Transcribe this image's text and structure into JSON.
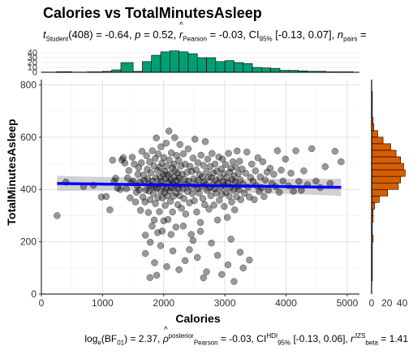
{
  "title": "Calories vs TotalMinutesAsleep",
  "subtitle": {
    "t_label": "t",
    "t_sub": "Student",
    "t_df": "(408) = -0.64, ",
    "p_label": "p",
    "p_val": " = 0.52, ",
    "r_label": "r",
    "r_sub": "Pearson",
    "r_val": " = -0.03, CI",
    "ci_sub": "95%",
    "ci_val": " [-0.13, 0.07], ",
    "n_label": "n",
    "n_sub": "pairs",
    "n_val": " ="
  },
  "caption": {
    "bf_prefix": "log",
    "bf_sub": "e",
    "bf_text": "(BF",
    "bf_sub2": "01",
    "bf_val": ") = 2.37, ",
    "rho_label": "ρ",
    "rho_sup": "posterior",
    "rho_sub": "Pearson",
    "rho_val": " = -0.03, CI",
    "ci_sup": "HDI",
    "ci_sub": "95%",
    "ci_val": " [-0.13, 0.06], ",
    "rb_label": "r",
    "rb_sup": "JZS",
    "rb_sub": "beta",
    "rb_val": " = 1.41"
  },
  "chart_data": {
    "type": "scatter",
    "xlabel": "Calories",
    "ylabel": "TotalMinutesAsleep",
    "xlim": [
      0,
      5200
    ],
    "ylim": [
      0,
      820
    ],
    "x_ticks": [
      0,
      1000,
      2000,
      3000,
      4000,
      5000
    ],
    "y_ticks": [
      0,
      200,
      400,
      600,
      800
    ],
    "grid": true,
    "point_color": "#000000",
    "point_opacity": 0.4,
    "regression": {
      "color": "#0000ff",
      "band_color": "#bebebe",
      "start": [
        257,
        423
      ],
      "end": [
        4900,
        408
      ],
      "ci_at_start": [
        395,
        452
      ],
      "ci_center": [
        407,
        430
      ],
      "ci_at_end": [
        375,
        441
      ]
    },
    "points": [
      [
        257,
        300
      ],
      [
        400,
        428
      ],
      [
        690,
        411
      ],
      [
        850,
        416
      ],
      [
        980,
        371
      ],
      [
        1060,
        373
      ],
      [
        1120,
        322
      ],
      [
        1165,
        512
      ],
      [
        1190,
        431
      ],
      [
        1215,
        443
      ],
      [
        1245,
        405
      ],
      [
        1290,
        400
      ],
      [
        1315,
        513
      ],
      [
        1340,
        521
      ],
      [
        1365,
        501
      ],
      [
        1390,
        403
      ],
      [
        1410,
        444
      ],
      [
        1430,
        472
      ],
      [
        1450,
        368
      ],
      [
        1470,
        426
      ],
      [
        1485,
        523
      ],
      [
        1500,
        431
      ],
      [
        1520,
        497
      ],
      [
        1540,
        352
      ],
      [
        1555,
        389
      ],
      [
        1565,
        414
      ],
      [
        1580,
        458
      ],
      [
        1590,
        483
      ],
      [
        1600,
        398
      ],
      [
        1615,
        428
      ],
      [
        1620,
        320
      ],
      [
        1635,
        502
      ],
      [
        1645,
        546
      ],
      [
        1660,
        371
      ],
      [
        1670,
        455
      ],
      [
        1680,
        434
      ],
      [
        1695,
        352
      ],
      [
        1700,
        225
      ],
      [
        1710,
        398
      ],
      [
        1720,
        529
      ],
      [
        1730,
        477
      ],
      [
        1740,
        441
      ],
      [
        1750,
        312
      ],
      [
        1755,
        419
      ],
      [
        1760,
        394
      ],
      [
        1770,
        505
      ],
      [
        1775,
        63
      ],
      [
        1780,
        361
      ],
      [
        1790,
        464
      ],
      [
        1800,
        414
      ],
      [
        1810,
        260
      ],
      [
        1815,
        548
      ],
      [
        1820,
        432
      ],
      [
        1830,
        384
      ],
      [
        1840,
        490
      ],
      [
        1845,
        283
      ],
      [
        1850,
        409
      ],
      [
        1860,
        518
      ],
      [
        1865,
        346
      ],
      [
        1870,
        445
      ],
      [
        1880,
        597
      ],
      [
        1885,
        72
      ],
      [
        1890,
        405
      ],
      [
        1900,
        472
      ],
      [
        1905,
        368
      ],
      [
        1910,
        536
      ],
      [
        1920,
        420
      ],
      [
        1930,
        315
      ],
      [
        1935,
        484
      ],
      [
        1940,
        447
      ],
      [
        1950,
        392
      ],
      [
        1955,
        563
      ],
      [
        1960,
        430
      ],
      [
        1970,
        501
      ],
      [
        1975,
        241
      ],
      [
        1980,
        367
      ],
      [
        1990,
        458
      ],
      [
        1995,
        413
      ],
      [
        2000,
        522
      ],
      [
        2010,
        387
      ],
      [
        2015,
        469
      ],
      [
        2025,
        339
      ],
      [
        2030,
        441
      ],
      [
        2040,
        577
      ],
      [
        2045,
        404
      ],
      [
        2050,
        489
      ],
      [
        2060,
        376
      ],
      [
        2065,
        455
      ],
      [
        2070,
        285
      ],
      [
        2080,
        427
      ],
      [
        2085,
        623
      ],
      [
        2090,
        513
      ],
      [
        2100,
        395
      ],
      [
        2105,
        461
      ],
      [
        2110,
        355
      ],
      [
        2120,
        436
      ],
      [
        2125,
        540
      ],
      [
        2130,
        407
      ],
      [
        2140,
        483
      ],
      [
        2145,
        314
      ],
      [
        2150,
        423
      ],
      [
        2160,
        374
      ],
      [
        2165,
        497
      ],
      [
        2170,
        447
      ],
      [
        2180,
        598
      ],
      [
        2185,
        414
      ],
      [
        2190,
        472
      ],
      [
        2200,
        256
      ],
      [
        2205,
        387
      ],
      [
        2210,
        530
      ],
      [
        2220,
        435
      ],
      [
        2225,
        463
      ],
      [
        2230,
        342
      ],
      [
        2240,
        403
      ],
      [
        2245,
        511
      ],
      [
        2250,
        445
      ],
      [
        2260,
        376
      ],
      [
        2265,
        572
      ],
      [
        2270,
        420
      ],
      [
        2280,
        489
      ],
      [
        2290,
        328
      ],
      [
        2300,
        458
      ],
      [
        2310,
        402
      ],
      [
        2320,
        536
      ],
      [
        2330,
        365
      ],
      [
        2340,
        439
      ],
      [
        2350,
        497
      ],
      [
        2360,
        306
      ],
      [
        2370,
        418
      ],
      [
        2380,
        465
      ],
      [
        2390,
        392
      ],
      [
        2400,
        555
      ],
      [
        2410,
        432
      ],
      [
        2420,
        349
      ],
      [
        2430,
        488
      ],
      [
        2440,
        411
      ],
      [
        2450,
        228
      ],
      [
        2460,
        469
      ],
      [
        2470,
        384
      ],
      [
        2480,
        520
      ],
      [
        2490,
        441
      ],
      [
        2500,
        357
      ],
      [
        2510,
        592
      ],
      [
        2520,
        418
      ],
      [
        2530,
        475
      ],
      [
        2540,
        314
      ],
      [
        2550,
        403
      ],
      [
        2560,
        502
      ],
      [
        2570,
        436
      ],
      [
        2580,
        386
      ],
      [
        2590,
        457
      ],
      [
        2600,
        274
      ],
      [
        2610,
        531
      ],
      [
        2620,
        412
      ],
      [
        2630,
        448
      ],
      [
        2640,
        365
      ],
      [
        2650,
        492
      ],
      [
        2660,
        428
      ],
      [
        2670,
        342
      ],
      [
        2680,
        583
      ],
      [
        2690,
        419
      ],
      [
        2700,
        468
      ],
      [
        2710,
        396
      ],
      [
        2720,
        516
      ],
      [
        2730,
        446
      ],
      [
        2740,
        325
      ],
      [
        2750,
        407
      ],
      [
        2760,
        488
      ],
      [
        2770,
        376
      ],
      [
        2780,
        445
      ],
      [
        2790,
        538
      ],
      [
        2800,
        418
      ],
      [
        2810,
        463
      ],
      [
        2820,
        340
      ],
      [
        2830,
        402
      ],
      [
        2840,
        497
      ],
      [
        2850,
        436
      ],
      [
        2860,
        386
      ],
      [
        2870,
        470
      ],
      [
        2880,
        283
      ],
      [
        2890,
        423
      ],
      [
        2900,
        524
      ],
      [
        2910,
        359
      ],
      [
        2920,
        446
      ],
      [
        2930,
        408
      ],
      [
        2940,
        478
      ],
      [
        2950,
        381
      ],
      [
        2960,
        516
      ],
      [
        2970,
        431
      ],
      [
        2980,
        461
      ],
      [
        2990,
        335
      ],
      [
        3000,
        415
      ],
      [
        3010,
        495
      ],
      [
        3020,
        388
      ],
      [
        3030,
        445
      ],
      [
        3040,
        293
      ],
      [
        3050,
        426
      ],
      [
        3060,
        538
      ],
      [
        3070,
        374
      ],
      [
        3080,
        466
      ],
      [
        3090,
        409
      ],
      [
        3100,
        481
      ],
      [
        3110,
        352
      ],
      [
        3120,
        438
      ],
      [
        3130,
        506
      ],
      [
        3140,
        396
      ],
      [
        3150,
        452
      ],
      [
        3160,
        322
      ],
      [
        3170,
        429
      ],
      [
        3180,
        485
      ],
      [
        3190,
        372
      ],
      [
        3200,
        547
      ],
      [
        3210,
        413
      ],
      [
        3220,
        461
      ],
      [
        3230,
        398
      ],
      [
        3240,
        508
      ],
      [
        3250,
        437
      ],
      [
        3260,
        361
      ],
      [
        3280,
        478
      ],
      [
        3300,
        420
      ],
      [
        3320,
        385
      ],
      [
        3340,
        462
      ],
      [
        3360,
        543
      ],
      [
        3380,
        409
      ],
      [
        3400,
        371
      ],
      [
        3420,
        446
      ],
      [
        3440,
        497
      ],
      [
        3460,
        431
      ],
      [
        3480,
        361
      ],
      [
        3500,
        471
      ],
      [
        3520,
        414
      ],
      [
        3540,
        521
      ],
      [
        3560,
        392
      ],
      [
        3580,
        448
      ],
      [
        3600,
        407
      ],
      [
        3620,
        506
      ],
      [
        3640,
        373
      ],
      [
        3660,
        436
      ],
      [
        3690,
        466
      ],
      [
        3710,
        397
      ],
      [
        3740,
        481
      ],
      [
        3770,
        423
      ],
      [
        3800,
        458
      ],
      [
        3830,
        411
      ],
      [
        3860,
        548
      ],
      [
        3890,
        389
      ],
      [
        3920,
        474
      ],
      [
        3950,
        432
      ],
      [
        3990,
        516
      ],
      [
        4040,
        414
      ],
      [
        4080,
        462
      ],
      [
        4120,
        393
      ],
      [
        4160,
        548
      ],
      [
        4210,
        431
      ],
      [
        4250,
        397
      ],
      [
        4290,
        471
      ],
      [
        4350,
        418
      ],
      [
        4420,
        556
      ],
      [
        4490,
        432
      ],
      [
        4560,
        407
      ],
      [
        4640,
        487
      ],
      [
        4720,
        423
      ],
      [
        4800,
        546
      ],
      [
        4900,
        506
      ],
      [
        1950,
        185
      ],
      [
        2150,
        165
      ],
      [
        2250,
        93
      ],
      [
        2350,
        128
      ],
      [
        2550,
        140
      ],
      [
        2700,
        85
      ],
      [
        2880,
        148
      ],
      [
        3050,
        112
      ],
      [
        3150,
        48
      ],
      [
        3300,
        100
      ],
      [
        2480,
        205
      ],
      [
        2000,
        280
      ],
      [
        1700,
        155
      ],
      [
        2600,
        240
      ],
      [
        3100,
        210
      ],
      [
        1850,
        120
      ],
      [
        2950,
        75
      ],
      [
        2420,
        170
      ],
      [
        2780,
        195
      ],
      [
        2120,
        228
      ],
      [
        1780,
        198
      ],
      [
        3250,
        160
      ],
      [
        2320,
        260
      ],
      [
        2650,
        62
      ],
      [
        2050,
        105
      ],
      [
        3400,
        130
      ],
      [
        1900,
        235
      ]
    ],
    "top_histogram": {
      "variable": "Calories",
      "color": "#009e73",
      "y_ticks": [
        0,
        10,
        20,
        30,
        40
      ],
      "ylim": [
        0,
        45
      ],
      "bin_edges": [
        1500,
        1650,
        1800,
        1950,
        2100,
        2250,
        2400,
        2550,
        2700,
        2850,
        3000,
        3150,
        3300,
        3450,
        3600,
        3750,
        3900,
        4050,
        4200,
        4350,
        4500,
        4650,
        4800,
        4950,
        5100
      ],
      "counts": [
        2,
        22,
        35,
        42,
        44,
        42,
        38,
        30,
        30,
        22,
        24,
        20,
        18,
        10,
        9,
        8,
        4,
        4,
        3,
        2,
        2,
        1,
        1,
        1
      ],
      "low_bins": [
        [
          0,
          250,
          0.5
        ],
        [
          250,
          500,
          1.2
        ],
        [
          500,
          750,
          0.5
        ],
        [
          750,
          1000,
          1
        ],
        [
          1000,
          1150,
          2
        ],
        [
          1150,
          1300,
          5
        ],
        [
          1300,
          1500,
          20
        ]
      ]
    },
    "right_histogram": {
      "variable": "TotalMinutesAsleep",
      "color": "#d55e00",
      "x_ticks": [
        0,
        20,
        40
      ],
      "xlim": [
        0,
        50
      ],
      "bin_edges": [
        50,
        75,
        100,
        125,
        150,
        175,
        200,
        225,
        250,
        275,
        300,
        325,
        350,
        375,
        400,
        425,
        450,
        475,
        500,
        525,
        550,
        575,
        600,
        625,
        650,
        675,
        700,
        725,
        750,
        775,
        800
      ],
      "counts": [
        1,
        1,
        1,
        1,
        1,
        1,
        2,
        1,
        1,
        2,
        2,
        4,
        10,
        21,
        35,
        38,
        44,
        42,
        38,
        32,
        25,
        15,
        8,
        3,
        2,
        1,
        1,
        1,
        1,
        0
      ]
    }
  }
}
